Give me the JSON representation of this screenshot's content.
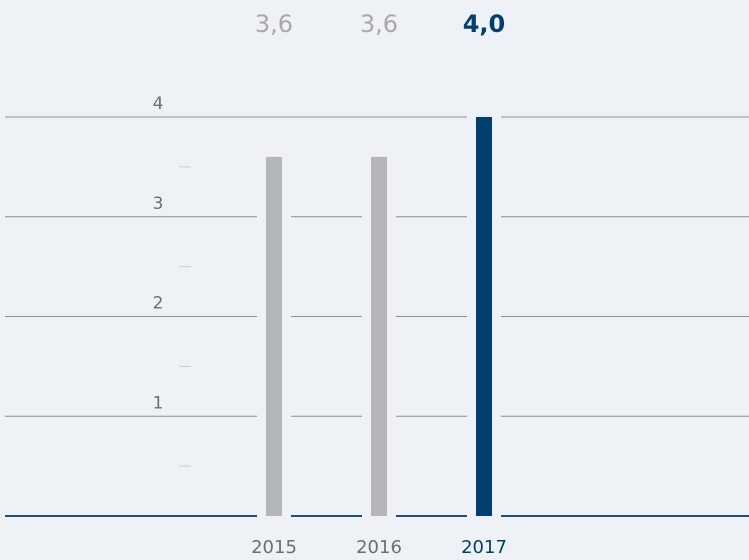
{
  "chart_data": {
    "type": "bar",
    "categories": [
      "2015",
      "2016",
      "2017"
    ],
    "values": [
      3.6,
      3.6,
      4.0
    ],
    "value_labels": [
      "3,6",
      "3,6",
      "4,0"
    ],
    "colors": [
      "#b4b6b8",
      "#b4b6b8",
      "#003f72"
    ],
    "label_colors": [
      "#a7a9ac",
      "#a7a9ac",
      "#003f72"
    ],
    "highlight_index": 2,
    "ylim": [
      0,
      4
    ],
    "yticks": [
      1,
      2,
      3,
      4
    ],
    "minor_yticks": [
      0.5,
      1.5,
      2.5,
      3.5
    ],
    "grid": true,
    "grid_color": "#8c8f93",
    "baseline_color": "#1c4f7c"
  }
}
